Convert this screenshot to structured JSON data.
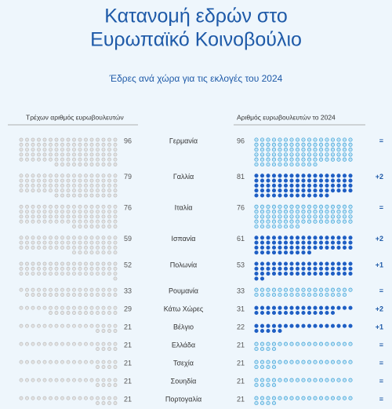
{
  "header": {
    "title_line1": "Κατανομή εδρών στο",
    "title_line2": "Ευρωπαϊκό Κοινοβούλιο",
    "subtitle": "Έδρες ανά χώρα για τις εκλογές του 2024"
  },
  "columns": {
    "current": "Τρέχων αριθμός ευρωβουλευτών",
    "new": "Αριθμός ευρωβουλευτών το 2024"
  },
  "rows": [
    {
      "country": "Γερμανία",
      "current": 96,
      "new": 96,
      "change": "="
    },
    {
      "country": "Γαλλία",
      "current": 79,
      "new": 81,
      "change": "+2"
    },
    {
      "country": "Ιταλία",
      "current": 76,
      "new": 76,
      "change": "="
    },
    {
      "country": "Ισπανία",
      "current": 59,
      "new": 61,
      "change": "+2"
    },
    {
      "country": "Πολωνία",
      "current": 52,
      "new": 53,
      "change": "+1"
    },
    {
      "country": "Ρουμανία",
      "current": 33,
      "new": 33,
      "change": "="
    },
    {
      "country": "Κάτω Χώρες",
      "current": 29,
      "new": 31,
      "change": "+2"
    },
    {
      "country": "Βέλγιο",
      "current": 21,
      "new": 22,
      "change": "+1"
    },
    {
      "country": "Ελλάδα",
      "current": 21,
      "new": 21,
      "change": "="
    },
    {
      "country": "Τσεχία",
      "current": 21,
      "new": 21,
      "change": "="
    },
    {
      "country": "Σουηδία",
      "current": 21,
      "new": 21,
      "change": "="
    },
    {
      "country": "Πορτογαλία",
      "current": 21,
      "new": 21,
      "change": "="
    }
  ]
}
